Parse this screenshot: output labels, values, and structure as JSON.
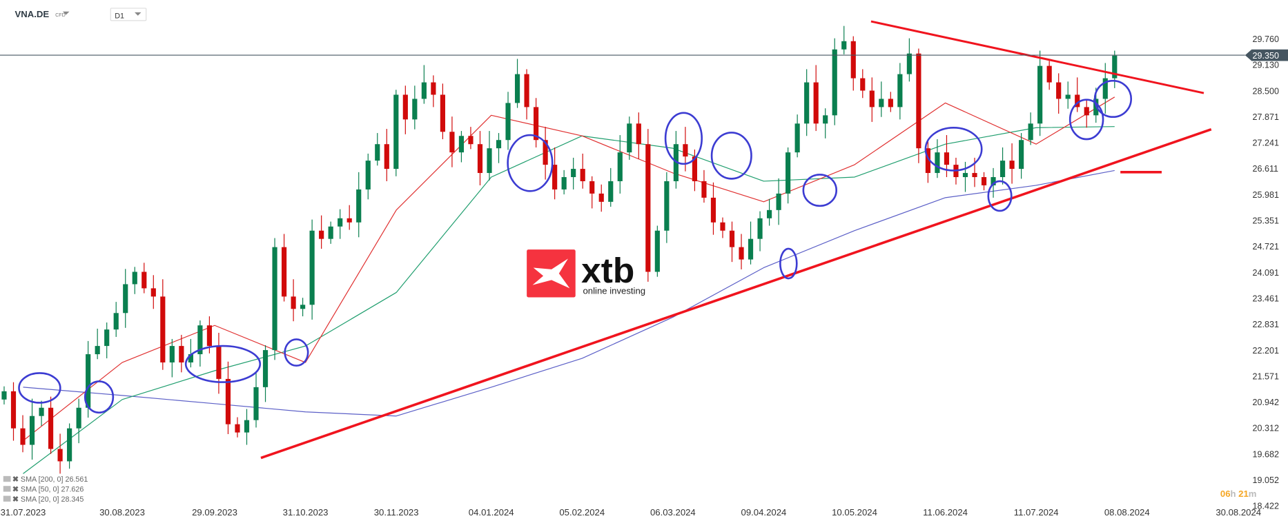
{
  "header": {
    "symbol": "VNA.DE",
    "instrument_type": "CFD",
    "timeframe": "D1"
  },
  "logo": {
    "brand": "xtb",
    "tagline": "online investing",
    "color": "#f5333f"
  },
  "timer": {
    "hours": "06",
    "h": "h",
    "minutes": "21",
    "m": "m"
  },
  "chart_data": {
    "type": "candlestick",
    "current_price": "29.350",
    "y_ticks": [
      "29.760",
      "29.130",
      "28.500",
      "27.871",
      "27.241",
      "26.611",
      "25.981",
      "25.351",
      "24.721",
      "24.091",
      "23.461",
      "22.831",
      "22.201",
      "21.571",
      "20.942",
      "20.312",
      "19.682",
      "19.052",
      "18.422"
    ],
    "ylim": [
      18.422,
      29.76
    ],
    "x_ticks": [
      "31.07.2023",
      "30.08.2023",
      "29.09.2023",
      "31.10.2023",
      "30.11.2023",
      "04.01.2024",
      "05.02.2024",
      "06.03.2024",
      "09.04.2024",
      "10.05.2024",
      "11.06.2024",
      "11.07.2024",
      "08.08.2024",
      "30.08.2024"
    ],
    "first_open": 21.0,
    "closes": [
      21.2,
      20.3,
      19.9,
      20.6,
      20.8,
      19.8,
      19.5,
      20.3,
      20.8,
      22.1,
      22.3,
      22.7,
      23.1,
      23.8,
      24.1,
      23.7,
      23.5,
      21.9,
      22.3,
      21.9,
      22.1,
      22.8,
      22.3,
      21.5,
      20.4,
      20.2,
      20.5,
      21.3,
      22.2,
      24.7,
      23.5,
      23.2,
      23.3,
      25.1,
      24.9,
      25.2,
      25.4,
      25.3,
      26.1,
      26.8,
      27.2,
      26.6,
      28.4,
      27.8,
      28.3,
      28.7,
      28.4,
      27.5,
      27.0,
      27.4,
      27.2,
      26.5,
      27.1,
      27.3,
      28.2,
      28.9,
      28.1,
      27.3,
      26.7,
      26.1,
      26.4,
      26.6,
      26.3,
      26.0,
      25.8,
      26.3,
      27.0,
      27.7,
      27.2,
      24.1,
      25.1,
      26.3,
      27.2,
      26.9,
      26.3,
      25.9,
      25.3,
      25.1,
      24.7,
      24.4,
      24.9,
      25.4,
      25.6,
      26.0,
      27.0,
      27.7,
      28.7,
      27.7,
      27.9,
      29.5,
      29.7,
      28.8,
      28.5,
      28.1,
      28.3,
      28.1,
      28.9,
      29.4,
      27.1,
      26.5,
      27.0,
      26.7,
      26.4,
      26.5,
      26.4,
      26.2,
      26.4,
      26.8,
      26.6,
      27.3,
      27.7,
      29.1,
      28.7,
      28.3,
      28.4,
      28.1,
      27.9,
      28.3,
      28.8,
      29.35
    ],
    "indicators": [
      {
        "label": "SMA [200, 0] 26.561",
        "color": "#5b5fc7",
        "values_at_x_ticks": [
          21.3,
          21.1,
          20.9,
          20.7,
          20.6,
          21.3,
          22.0,
          23.0,
          24.2,
          25.1,
          25.9,
          26.2
        ],
        "last": 26.561
      },
      {
        "label": "SMA [50, 0] 27.626",
        "color": "#1f9e6e",
        "values_at_x_ticks": [
          19.2,
          21.0,
          21.7,
          22.3,
          23.6,
          26.4,
          27.4,
          27.1,
          26.3,
          26.4,
          27.2,
          27.6
        ],
        "last": 27.626
      },
      {
        "label": "SMA [20, 0] 28.345",
        "color": "#e03030",
        "values_at_x_ticks": [
          20.0,
          21.9,
          22.8,
          21.9,
          25.6,
          27.9,
          27.4,
          26.5,
          25.8,
          26.7,
          28.2,
          27.2
        ],
        "last": 28.345
      }
    ],
    "colors": {
      "up": "#0a7f4f",
      "down": "#d10a0a",
      "trendline": "#f0141e",
      "annotation": "#3c3cd2",
      "price_line": "#455560"
    },
    "grid": false
  }
}
